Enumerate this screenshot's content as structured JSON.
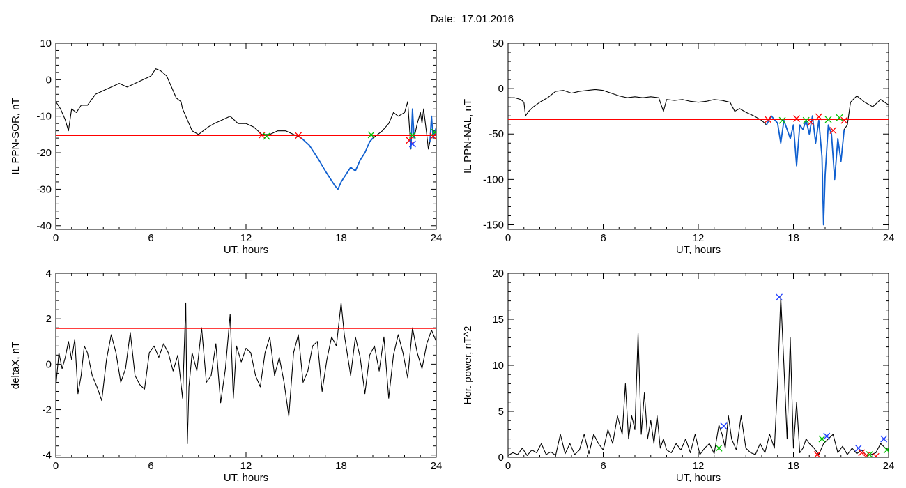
{
  "figure": {
    "date_label": "Date:",
    "date_value": "17.01.2016"
  },
  "colors": {
    "trace": "#000000",
    "highlight": "#1060d0",
    "threshold": "#ff0000",
    "marker_red": "#ff0000",
    "marker_green": "#00c000",
    "marker_blue": "#2040ff"
  },
  "chart_data": [
    {
      "type": "line",
      "title": "",
      "xlabel": "UT, hours",
      "ylabel": "IL PPN-SOR, nT",
      "xlim": [
        0,
        24
      ],
      "ylim": [
        -41,
        10
      ],
      "xticks": [
        0,
        6,
        12,
        18,
        24
      ],
      "yticks": [
        10,
        0,
        -10,
        -20,
        -30,
        -40
      ],
      "threshold": -15.3,
      "highlight_ranges": [
        [
          15.3,
          20.0
        ],
        [
          22.4,
          22.6
        ],
        [
          23.6,
          24.0
        ]
      ],
      "series": [
        {
          "x": [
            0,
            0.3,
            0.6,
            0.8,
            1.0,
            1.3,
            1.6,
            2.0,
            2.5,
            3.0,
            3.5,
            4.0,
            4.5,
            5.0,
            5.5,
            6.0,
            6.3,
            6.6,
            7.0,
            7.3,
            7.6,
            7.9,
            8.0,
            8.3,
            8.6,
            9.0,
            9.3,
            9.6,
            10.0,
            10.5,
            11.0,
            11.5,
            12.0,
            12.5,
            13.0,
            13.5,
            14.0,
            14.5,
            15.0,
            15.5,
            16.0,
            16.3,
            16.6,
            17.0,
            17.3,
            17.6,
            17.8,
            18.0,
            18.3,
            18.6,
            18.9,
            19.2,
            19.5,
            19.8,
            20.0,
            20.3,
            20.6,
            21.0,
            21.3,
            21.6,
            22.0,
            22.2,
            22.4,
            22.5,
            22.6,
            22.8,
            23.0,
            23.1,
            23.2,
            23.4,
            23.5,
            23.6,
            23.7,
            23.8,
            24.0
          ],
          "values": [
            -6,
            -8,
            -11,
            -14,
            -8,
            -9,
            -7,
            -7,
            -4,
            -3,
            -2,
            -1,
            -2,
            -1,
            0,
            1,
            3,
            2.5,
            1,
            -2,
            -5,
            -6,
            -8,
            -11,
            -14,
            -15,
            -14,
            -13,
            -12,
            -11,
            -10,
            -12,
            -12,
            -13,
            -15,
            -15,
            -14,
            -14,
            -15,
            -16,
            -18,
            -20,
            -22,
            -25,
            -27,
            -29,
            -30,
            -28,
            -26,
            -24,
            -25,
            -22,
            -20,
            -17,
            -16,
            -15,
            -14,
            -12,
            -9,
            -10,
            -9,
            -6,
            -19,
            -8,
            -16,
            -12,
            -9,
            -12,
            -8,
            -15,
            -19,
            -17,
            -10,
            -16,
            -13
          ]
        }
      ],
      "markers": [
        {
          "x": 13.0,
          "y": -15.2,
          "color": "red"
        },
        {
          "x": 13.3,
          "y": -15.5,
          "color": "green"
        },
        {
          "x": 15.3,
          "y": -15.3,
          "color": "red"
        },
        {
          "x": 19.9,
          "y": -15.1,
          "color": "green"
        },
        {
          "x": 22.3,
          "y": -16.6,
          "color": "red"
        },
        {
          "x": 22.5,
          "y": -15.2,
          "color": "green"
        },
        {
          "x": 22.5,
          "y": -17.6,
          "color": "blue"
        },
        {
          "x": 23.8,
          "y": -15.5,
          "color": "red"
        },
        {
          "x": 23.9,
          "y": -14.4,
          "color": "green"
        }
      ]
    },
    {
      "type": "line",
      "title": "",
      "xlabel": "UT, hours",
      "ylabel": "IL PPN-NAL, nT",
      "xlim": [
        0,
        24
      ],
      "ylim": [
        -155,
        50
      ],
      "xticks": [
        0,
        6,
        12,
        18,
        24
      ],
      "yticks": [
        50,
        0,
        -50,
        -100,
        -150
      ],
      "threshold": -34,
      "highlight_ranges": [
        [
          16.2,
          21.3
        ]
      ],
      "series": [
        {
          "x": [
            0,
            0.4,
            0.8,
            1.0,
            1.1,
            1.3,
            1.6,
            2.0,
            2.5,
            3.0,
            3.5,
            4.0,
            4.5,
            5.0,
            5.5,
            6.0,
            6.5,
            7.0,
            7.5,
            8.0,
            8.5,
            9.0,
            9.5,
            9.8,
            10.0,
            10.5,
            11.0,
            11.5,
            12.0,
            12.5,
            13.0,
            13.5,
            14.0,
            14.3,
            14.6,
            15.0,
            15.5,
            16.0,
            16.3,
            16.6,
            17.0,
            17.2,
            17.4,
            17.6,
            17.8,
            18.0,
            18.2,
            18.4,
            18.6,
            18.8,
            19.0,
            19.2,
            19.4,
            19.6,
            19.8,
            19.9,
            20.0,
            20.2,
            20.4,
            20.6,
            20.8,
            21.0,
            21.2,
            21.4,
            21.6,
            22.0,
            22.5,
            23.0,
            23.5,
            24.0
          ],
          "values": [
            -10,
            -10,
            -12,
            -15,
            -30,
            -25,
            -20,
            -15,
            -10,
            -3,
            -2,
            -5,
            -3,
            -2,
            -1,
            -2,
            -5,
            -8,
            -10,
            -9,
            -10,
            -9,
            -10,
            -25,
            -12,
            -13,
            -12,
            -14,
            -15,
            -14,
            -12,
            -13,
            -15,
            -25,
            -22,
            -26,
            -30,
            -35,
            -40,
            -30,
            -38,
            -60,
            -35,
            -45,
            -55,
            -40,
            -85,
            -40,
            -45,
            -35,
            -50,
            -30,
            -60,
            -35,
            -75,
            -150,
            -95,
            -40,
            -50,
            -100,
            -55,
            -80,
            -45,
            -40,
            -15,
            -8,
            -15,
            -20,
            -12,
            -18
          ]
        }
      ],
      "markers": [
        {
          "x": 16.4,
          "y": -34,
          "color": "red"
        },
        {
          "x": 17.3,
          "y": -35,
          "color": "green"
        },
        {
          "x": 18.2,
          "y": -33,
          "color": "red"
        },
        {
          "x": 18.8,
          "y": -35,
          "color": "green"
        },
        {
          "x": 19.1,
          "y": -37,
          "color": "red"
        },
        {
          "x": 19.6,
          "y": -31,
          "color": "red"
        },
        {
          "x": 20.2,
          "y": -34,
          "color": "green"
        },
        {
          "x": 20.5,
          "y": -46,
          "color": "red"
        },
        {
          "x": 20.9,
          "y": -32,
          "color": "green"
        },
        {
          "x": 21.2,
          "y": -35,
          "color": "red"
        }
      ]
    },
    {
      "type": "line",
      "title": "",
      "xlabel": "UT, hours",
      "ylabel": "deltaX, nT",
      "xlim": [
        0,
        24
      ],
      "ylim": [
        -4.1,
        4
      ],
      "xticks": [
        0,
        6,
        12,
        18,
        24
      ],
      "yticks": [
        4,
        2,
        0,
        -2,
        -4
      ],
      "threshold": 1.57,
      "highlight_ranges": [],
      "series": [
        {
          "x": [
            0,
            0.2,
            0.4,
            0.6,
            0.8,
            1.0,
            1.2,
            1.4,
            1.6,
            1.8,
            2.0,
            2.3,
            2.6,
            2.9,
            3.2,
            3.5,
            3.8,
            4.1,
            4.4,
            4.7,
            5.0,
            5.3,
            5.6,
            5.9,
            6.2,
            6.5,
            6.8,
            7.1,
            7.4,
            7.7,
            8.0,
            8.2,
            8.3,
            8.4,
            8.6,
            8.9,
            9.2,
            9.5,
            9.8,
            10.1,
            10.4,
            10.7,
            11.0,
            11.2,
            11.4,
            11.7,
            12.0,
            12.3,
            12.6,
            12.9,
            13.2,
            13.5,
            13.8,
            14.1,
            14.4,
            14.7,
            15.0,
            15.3,
            15.6,
            15.9,
            16.2,
            16.5,
            16.8,
            17.1,
            17.4,
            17.7,
            18.0,
            18.2,
            18.4,
            18.6,
            18.9,
            19.2,
            19.5,
            19.8,
            20.1,
            20.4,
            20.7,
            21.0,
            21.3,
            21.6,
            21.9,
            22.2,
            22.5,
            22.8,
            23.1,
            23.4,
            23.7,
            24.0
          ],
          "values": [
            -1,
            0.5,
            -0.2,
            0.3,
            1.0,
            0.2,
            1.1,
            -1.3,
            -0.5,
            0.8,
            0.5,
            -0.5,
            -1.0,
            -1.6,
            0.2,
            1.3,
            0.5,
            -0.8,
            -0.2,
            1.4,
            -0.5,
            -0.9,
            -1.1,
            0.5,
            0.8,
            0.3,
            0.9,
            0.5,
            -0.3,
            0.4,
            -1.5,
            2.7,
            -3.5,
            -1.0,
            0.5,
            -0.3,
            1.6,
            -0.8,
            -0.5,
            0.9,
            -1.7,
            -0.2,
            2.2,
            -1.5,
            0.8,
            0.1,
            0.7,
            0.5,
            -0.5,
            -1.0,
            0.5,
            1.2,
            -0.5,
            0.3,
            -0.8,
            -2.3,
            0.5,
            1.3,
            -0.8,
            -0.3,
            0.8,
            1.0,
            -1.2,
            0.2,
            1.2,
            0.8,
            2.7,
            1.3,
            0.4,
            -0.5,
            1.2,
            0.3,
            -1.3,
            0.4,
            0.8,
            -0.3,
            1.2,
            -1.5,
            0.4,
            1.3,
            0.5,
            -0.6,
            1.6,
            0.5,
            -0.2,
            0.9,
            1.5,
            1.0
          ]
        }
      ],
      "markers": []
    },
    {
      "type": "line",
      "title": "",
      "xlabel": "UT, hours",
      "ylabel": "Hor. power, nT^2",
      "xlim": [
        0,
        24
      ],
      "ylim": [
        0,
        20
      ],
      "xticks": [
        0,
        6,
        12,
        18,
        24
      ],
      "yticks": [
        20,
        15,
        10,
        5,
        0
      ],
      "threshold": null,
      "highlight_ranges": [],
      "series": [
        {
          "x": [
            0,
            0.3,
            0.6,
            0.9,
            1.2,
            1.5,
            1.8,
            2.1,
            2.4,
            2.7,
            3.0,
            3.3,
            3.6,
            3.9,
            4.2,
            4.5,
            4.8,
            5.1,
            5.4,
            5.7,
            6.0,
            6.3,
            6.6,
            6.9,
            7.2,
            7.4,
            7.6,
            7.8,
            8.0,
            8.2,
            8.4,
            8.6,
            8.8,
            9.0,
            9.2,
            9.4,
            9.6,
            9.8,
            10.0,
            10.3,
            10.6,
            10.9,
            11.2,
            11.5,
            11.8,
            12.1,
            12.4,
            12.7,
            13.0,
            13.3,
            13.5,
            13.7,
            13.9,
            14.1,
            14.4,
            14.7,
            15.0,
            15.3,
            15.6,
            15.9,
            16.2,
            16.5,
            16.8,
            17.0,
            17.2,
            17.4,
            17.6,
            17.8,
            18.0,
            18.2,
            18.4,
            18.6,
            18.8,
            19.0,
            19.3,
            19.6,
            19.9,
            20.2,
            20.5,
            20.8,
            21.1,
            21.4,
            21.7,
            22.0,
            22.3,
            22.6,
            22.9,
            23.2,
            23.5,
            23.8,
            24.0
          ],
          "values": [
            0.2,
            0.5,
            0.3,
            1.0,
            0.2,
            0.8,
            0.5,
            1.5,
            0.3,
            0.6,
            0.2,
            2.5,
            0.4,
            1.5,
            0.3,
            0.8,
            2.5,
            0.4,
            2.5,
            1.5,
            0.8,
            3.0,
            1.5,
            4.5,
            2.5,
            8.0,
            2.0,
            4.5,
            3.0,
            13.5,
            2.5,
            7.0,
            2.0,
            4.0,
            1.5,
            4.5,
            1.0,
            2.0,
            0.8,
            0.5,
            1.5,
            0.8,
            2.0,
            0.5,
            2.5,
            0.3,
            1.0,
            1.5,
            0.4,
            3.5,
            2.5,
            1.0,
            4.5,
            2.0,
            0.8,
            4.5,
            1.0,
            0.5,
            0.3,
            1.5,
            0.5,
            2.5,
            1.0,
            8.0,
            17.5,
            10.0,
            2.0,
            13.0,
            1.0,
            6.0,
            0.5,
            1.0,
            2.0,
            1.5,
            1.0,
            0.3,
            1.5,
            2.0,
            2.5,
            0.5,
            1.2,
            0.3,
            1.0,
            0.4,
            0.8,
            0.2,
            0.3,
            0.5,
            1.5,
            1.0,
            0.8
          ]
        }
      ],
      "markers": [
        {
          "x": 13.3,
          "y": 1.0,
          "color": "green"
        },
        {
          "x": 13.6,
          "y": 3.4,
          "color": "blue"
        },
        {
          "x": 17.1,
          "y": 17.4,
          "color": "blue"
        },
        {
          "x": 19.5,
          "y": 0.3,
          "color": "red"
        },
        {
          "x": 19.8,
          "y": 2.0,
          "color": "green"
        },
        {
          "x": 20.1,
          "y": 2.3,
          "color": "blue"
        },
        {
          "x": 22.1,
          "y": 1.0,
          "color": "blue"
        },
        {
          "x": 22.3,
          "y": 0.5,
          "color": "red"
        },
        {
          "x": 22.6,
          "y": 0.2,
          "color": "red"
        },
        {
          "x": 22.8,
          "y": 0.3,
          "color": "green"
        },
        {
          "x": 23.2,
          "y": 0.1,
          "color": "red"
        },
        {
          "x": 23.7,
          "y": 2.0,
          "color": "blue"
        },
        {
          "x": 23.9,
          "y": 0.8,
          "color": "green"
        }
      ]
    }
  ]
}
